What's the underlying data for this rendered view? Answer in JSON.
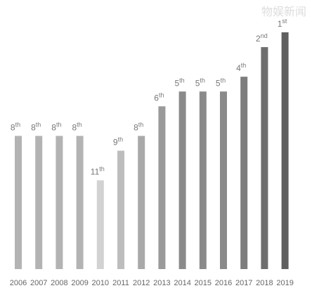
{
  "chart_data": {
    "type": "bar",
    "watermark": "物娱新闻",
    "categories": [
      "2006",
      "2007",
      "2008",
      "2009",
      "2010",
      "2011",
      "2012",
      "2013",
      "2014",
      "2015",
      "2016",
      "2017",
      "2018",
      "2019"
    ],
    "values": [
      8,
      8,
      8,
      8,
      11,
      9,
      8,
      6,
      5,
      5,
      5,
      4,
      2,
      1
    ],
    "value_labels": [
      "8th",
      "8th",
      "8th",
      "8th",
      "11th",
      "9th",
      "8th",
      "6th",
      "5th",
      "5th",
      "5th",
      "4th",
      "2nd",
      "1st"
    ],
    "colors": [
      "#b3b3b3",
      "#b3b3b3",
      "#b3b3b3",
      "#b3b3b3",
      "#d2d2d2",
      "#bdbdbd",
      "#a9a9a9",
      "#9a9a9a",
      "#8a8a8a",
      "#8a8a8a",
      "#8a8a8a",
      "#7d7d7d",
      "#6e6e6e",
      "#5f5f5f"
    ],
    "ylim": [
      17,
      1
    ]
  }
}
